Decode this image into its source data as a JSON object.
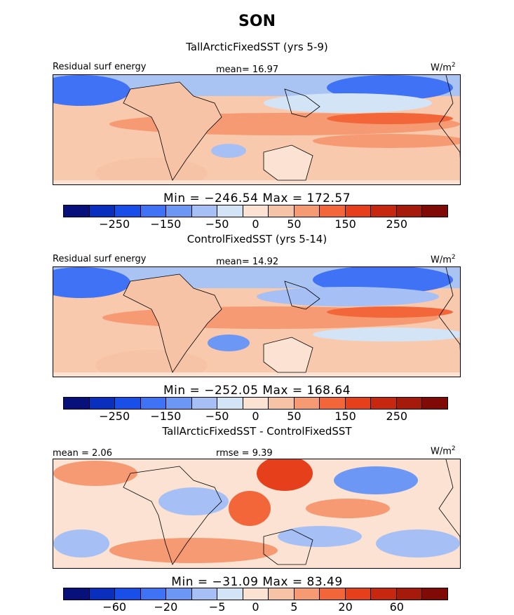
{
  "season": "SON",
  "panels": [
    {
      "title": "TallArcticFixedSST (yrs 5-9)",
      "left_label": "Residual surf energy",
      "center_label": "mean=  16.97",
      "units": "W/m",
      "units_sup": "2",
      "minmax": "Min = −246.54  Max = 172.57",
      "ticks": [
        "−250",
        "−150",
        "−50",
        "0",
        "50",
        "150",
        "250"
      ]
    },
    {
      "title": "ControlFixedSST (yrs 5-14)",
      "left_label": "Residual surf energy",
      "center_label": "mean=  14.92",
      "units": "W/m",
      "units_sup": "2",
      "minmax": "Min = −252.05  Max = 168.64",
      "ticks": [
        "−250",
        "−150",
        "−50",
        "0",
        "50",
        "150",
        "250"
      ]
    },
    {
      "title": "TallArcticFixedSST - ControlFixedSST",
      "left_label": "mean =   2.06",
      "center_label": "rmse =   9.39",
      "units": "W/m",
      "units_sup": "2",
      "minmax": "Min = −31.09  Max =  83.49",
      "ticks": [
        "−60",
        "−20",
        "−5",
        "0",
        "5",
        "20",
        "60"
      ]
    }
  ],
  "colorbar_colors": [
    "#08107c",
    "#0a2fbe",
    "#1a4ee8",
    "#3f72f5",
    "#6d97f5",
    "#a6c0f5",
    "#d4e4f7",
    "#fbe2d2",
    "#f7c3a6",
    "#f59a72",
    "#f2663a",
    "#e5401b",
    "#c7260f",
    "#a61a0c",
    "#800a06"
  ]
}
